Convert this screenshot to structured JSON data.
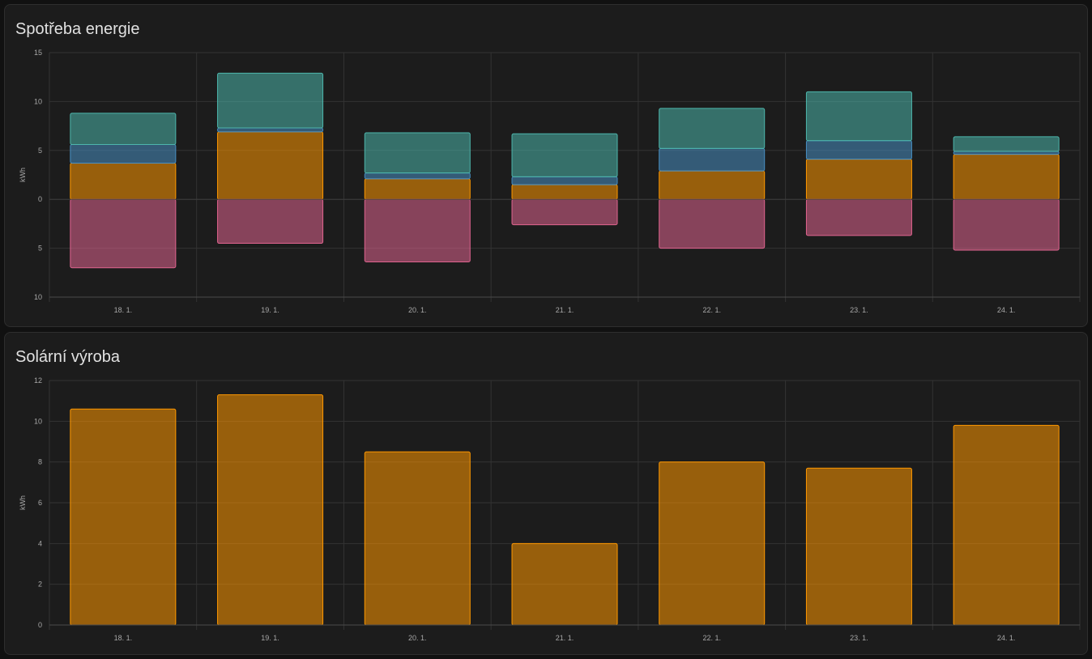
{
  "cards": [
    {
      "title": "Spotřeba energie"
    },
    {
      "title": "Solární výroba"
    }
  ],
  "chart_data": [
    {
      "type": "bar",
      "stacked": true,
      "title": "Spotřeba energie",
      "ylabel": "kWh",
      "ylim": [
        -10,
        15
      ],
      "yticks": [
        15,
        10,
        5,
        0,
        -5,
        -10
      ],
      "ytick_labels": [
        "15",
        "10",
        "5",
        "0",
        "5",
        "10"
      ],
      "categories": [
        "18. 1.",
        "19. 1.",
        "20. 1.",
        "21. 1.",
        "22. 1.",
        "23. 1.",
        "24. 1."
      ],
      "grid": true,
      "series": [
        {
          "values": [
            3.7,
            6.9,
            2.1,
            1.5,
            2.9,
            4.1,
            4.6
          ],
          "color": "#ff9800"
        },
        {
          "values": [
            1.9,
            0.4,
            0.6,
            0.8,
            2.3,
            1.9,
            0.3
          ],
          "color": "#488fc2"
        },
        {
          "values": [
            3.2,
            5.6,
            4.1,
            4.4,
            4.1,
            5.0,
            1.5
          ],
          "color": "#4db6ac"
        },
        {
          "values": [
            -7.0,
            -4.5,
            -6.4,
            -2.6,
            -5.0,
            -3.7,
            -5.2
          ],
          "color": "#e0648f"
        }
      ]
    },
    {
      "type": "bar",
      "title": "Solární výroba",
      "ylabel": "kWh",
      "ylim": [
        0,
        12
      ],
      "yticks": [
        12,
        10,
        8,
        6,
        4,
        2,
        0
      ],
      "ytick_labels": [
        "12",
        "10",
        "8",
        "6",
        "4",
        "2",
        "0"
      ],
      "categories": [
        "18. 1.",
        "19. 1.",
        "20. 1.",
        "21. 1.",
        "22. 1.",
        "23. 1.",
        "24. 1."
      ],
      "grid": true,
      "series": [
        {
          "values": [
            10.6,
            11.3,
            8.5,
            4.0,
            8.0,
            7.7,
            9.8
          ],
          "color": "#ff9800"
        }
      ]
    }
  ]
}
